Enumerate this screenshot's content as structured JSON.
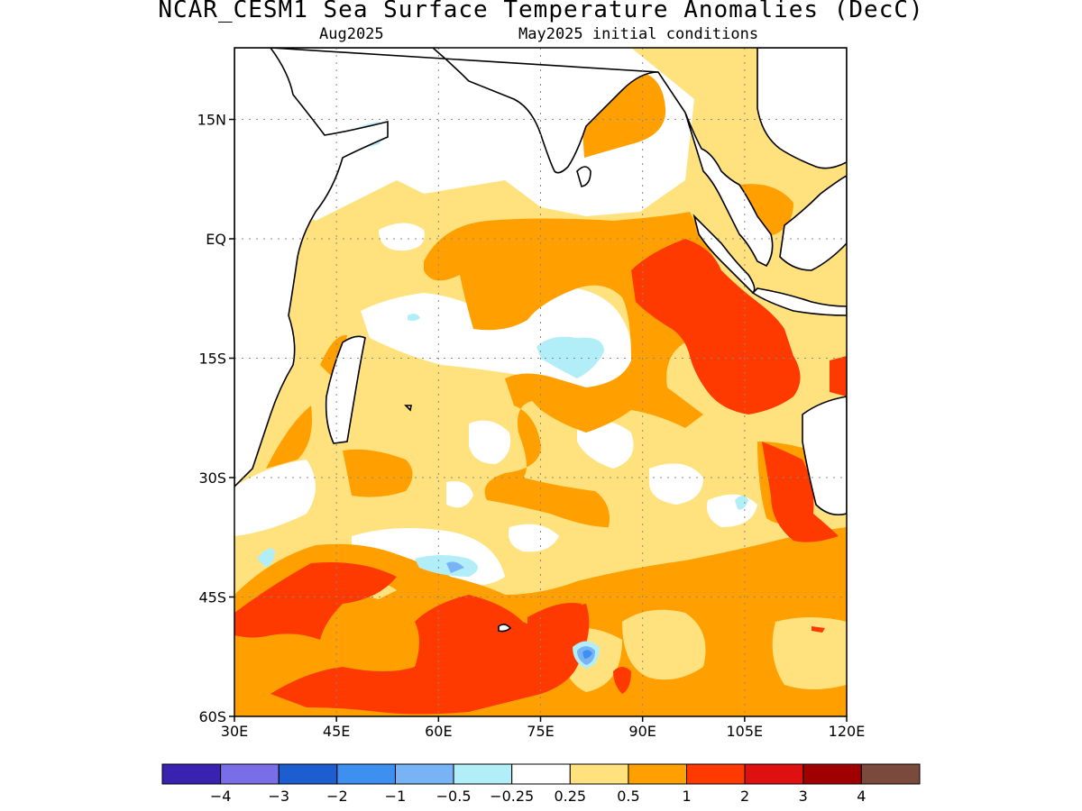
{
  "header": {
    "title": "NCAR_CESM1 Sea Surface Temperature Anomalies (DecC)",
    "valid_label": "Aug2025",
    "init_label": "May2025 initial conditions"
  },
  "axes": {
    "lat_ticks": [
      {
        "value": 15,
        "label": "15N"
      },
      {
        "value": 0,
        "label": "EQ"
      },
      {
        "value": -15,
        "label": "15S"
      },
      {
        "value": -30,
        "label": "30S"
      },
      {
        "value": -45,
        "label": "45S"
      },
      {
        "value": -60,
        "label": "60S"
      }
    ],
    "lon_ticks": [
      {
        "value": 30,
        "label": "30E"
      },
      {
        "value": 45,
        "label": "45E"
      },
      {
        "value": 60,
        "label": "60E"
      },
      {
        "value": 75,
        "label": "75E"
      },
      {
        "value": 90,
        "label": "90E"
      },
      {
        "value": 105,
        "label": "105E"
      },
      {
        "value": 120,
        "label": "120E"
      }
    ],
    "lon_range": [
      30,
      120
    ],
    "lat_range": [
      -60,
      24
    ]
  },
  "colorbar": {
    "colors": [
      "#3a22b0",
      "#7a6ee8",
      "#1c5ed0",
      "#3d8ff0",
      "#78b4f5",
      "#b2eef8",
      "#ffffff",
      "#ffe27e",
      "#ffa000",
      "#ff3a00",
      "#de1010",
      "#a00000",
      "#7a4a3c"
    ],
    "labels": [
      "-4",
      "-3",
      "-2",
      "-1",
      "-0.5",
      "-0.25",
      "0.25",
      "0.5",
      "1",
      "2",
      "3",
      "4"
    ]
  },
  "legend": {
    "colors": {
      "pale_yellow": "#ffe27e",
      "orange": "#ffa000",
      "red_orange": "#ff3a00",
      "light_cyan": "#b2eef8",
      "light_blue": "#78b4f5",
      "blue": "#3d8ff0"
    }
  }
}
